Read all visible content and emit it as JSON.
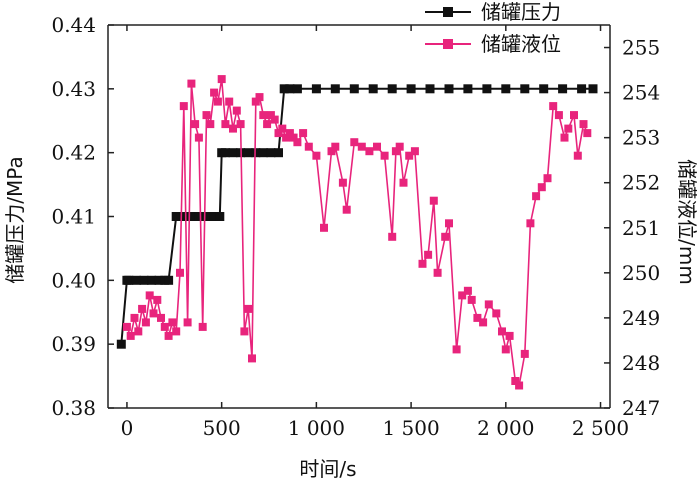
{
  "chart_data": {
    "type": "line",
    "xlabel": "时间/s",
    "ylabel_left": "储罐压力/MPa",
    "ylabel_right": "储罐液位/mm",
    "xlim": [
      -100,
      2550
    ],
    "ylim_left": [
      0.38,
      0.44
    ],
    "ylim_right": [
      247,
      255.5
    ],
    "x_ticks": [
      0,
      500,
      1000,
      1500,
      2000,
      2500
    ],
    "x_tick_labels": [
      "0",
      "500",
      "1 000",
      "1 500",
      "2 000",
      "2 500"
    ],
    "y_left_ticks": [
      0.38,
      0.39,
      0.4,
      0.41,
      0.42,
      0.43,
      0.44
    ],
    "y_left_tick_labels": [
      "0.38",
      "0.39",
      "0.40",
      "0.41",
      "0.42",
      "0.43",
      "0.44"
    ],
    "y_right_ticks": [
      247,
      248,
      249,
      250,
      251,
      252,
      253,
      254,
      255
    ],
    "y_right_tick_labels": [
      "247",
      "248",
      "249",
      "250",
      "251",
      "252",
      "253",
      "254",
      "255"
    ],
    "legend_position": "top-right",
    "series": [
      {
        "name": "储罐压力",
        "axis": "left",
        "color": "#111111",
        "marker": "square",
        "x": [
          -30,
          0,
          10,
          50,
          90,
          130,
          170,
          200,
          220,
          260,
          300,
          340,
          380,
          420,
          460,
          490,
          500,
          520,
          560,
          600,
          640,
          680,
          720,
          760,
          800,
          830,
          860,
          900,
          1000,
          1100,
          1200,
          1300,
          1400,
          1500,
          1600,
          1700,
          1800,
          1900,
          2000,
          2100,
          2200,
          2300,
          2400,
          2460
        ],
        "y": [
          0.39,
          0.4,
          0.4,
          0.4,
          0.4,
          0.4,
          0.4,
          0.4,
          0.4,
          0.41,
          0.41,
          0.41,
          0.41,
          0.41,
          0.41,
          0.41,
          0.42,
          0.42,
          0.42,
          0.42,
          0.42,
          0.42,
          0.42,
          0.42,
          0.42,
          0.43,
          0.43,
          0.43,
          0.43,
          0.43,
          0.43,
          0.43,
          0.43,
          0.43,
          0.43,
          0.43,
          0.43,
          0.43,
          0.43,
          0.43,
          0.43,
          0.43,
          0.43,
          0.43
        ]
      },
      {
        "name": "储罐液位",
        "axis": "right",
        "color": "#e8247c",
        "marker": "square",
        "x": [
          0,
          20,
          40,
          60,
          80,
          100,
          120,
          140,
          160,
          180,
          200,
          220,
          240,
          260,
          280,
          300,
          320,
          340,
          360,
          380,
          400,
          420,
          440,
          460,
          480,
          500,
          520,
          540,
          560,
          580,
          600,
          620,
          640,
          660,
          680,
          700,
          720,
          740,
          760,
          780,
          800,
          820,
          840,
          860,
          880,
          900,
          930,
          960,
          1000,
          1040,
          1080,
          1100,
          1140,
          1160,
          1200,
          1240,
          1280,
          1320,
          1360,
          1400,
          1420,
          1440,
          1460,
          1490,
          1520,
          1560,
          1590,
          1620,
          1640,
          1680,
          1700,
          1740,
          1770,
          1800,
          1820,
          1850,
          1880,
          1910,
          1950,
          1980,
          2000,
          2020,
          2050,
          2070,
          2100,
          2130,
          2160,
          2190,
          2220,
          2250,
          2280,
          2310,
          2330,
          2360,
          2380,
          2410,
          2430
        ],
        "y": [
          248.8,
          248.6,
          249.0,
          248.7,
          249.2,
          248.9,
          249.5,
          249.1,
          249.4,
          249.0,
          248.8,
          248.6,
          248.9,
          248.7,
          250.0,
          253.7,
          248.9,
          254.2,
          253.3,
          253.0,
          248.8,
          253.5,
          253.3,
          254.0,
          253.8,
          254.3,
          253.3,
          253.8,
          253.2,
          253.6,
          253.3,
          248.7,
          249.2,
          248.1,
          253.8,
          253.9,
          253.5,
          253.3,
          253.5,
          253.4,
          253.1,
          253.2,
          253.0,
          253.1,
          253.0,
          252.9,
          253.1,
          252.8,
          252.6,
          251.0,
          252.7,
          252.8,
          252.0,
          251.4,
          252.9,
          252.8,
          252.7,
          252.8,
          252.6,
          250.8,
          252.7,
          252.8,
          252.0,
          252.6,
          252.7,
          250.2,
          250.4,
          251.6,
          250.0,
          250.8,
          251.1,
          248.3,
          249.5,
          249.6,
          249.4,
          249.0,
          248.9,
          249.3,
          249.1,
          248.7,
          248.3,
          248.6,
          247.6,
          247.5,
          248.2,
          251.1,
          251.7,
          251.9,
          252.1,
          253.7,
          253.5,
          253.0,
          253.2,
          253.5,
          252.6,
          253.3,
          253.1
        ]
      }
    ]
  }
}
